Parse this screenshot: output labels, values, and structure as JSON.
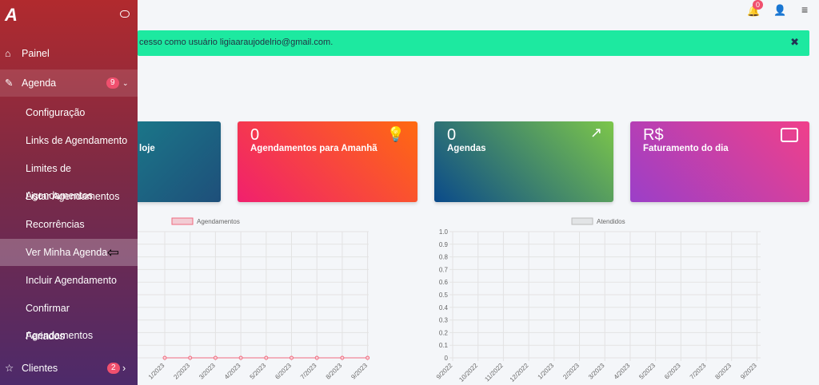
{
  "sidebar": {
    "logo": "A",
    "menu": [
      {
        "label": "Painel"
      },
      {
        "label": "Agenda",
        "badge": "9",
        "children": [
          "Configuração",
          "Links de Agendamento",
          "Limites de Agendamentos",
          "Listar Agendamentos",
          "Recorrências",
          "Ver Minha Agenda",
          "Incluir Agendamento",
          "Confirmar Agendamentos",
          "Feriados"
        ]
      },
      {
        "label": "Clientes",
        "badge": "2"
      }
    ]
  },
  "topbar": {
    "notifications": "0"
  },
  "alert": {
    "text": "cesso como usuário ligiaaraujodelrio@gmail.com.",
    "close": "✖"
  },
  "cards": [
    {
      "label": "loje"
    },
    {
      "value": "0",
      "label": "Agendamentos para Amanhã"
    },
    {
      "value": "0",
      "label": "Agendas"
    },
    {
      "value": "R$",
      "label": "Faturamento do dia"
    }
  ],
  "charts": [
    {
      "type": "line",
      "categories": [
        "1/2023",
        "2/2023",
        "3/2023",
        "4/2023",
        "5/2023",
        "6/2023",
        "7/2023",
        "8/2023",
        "9/2023"
      ],
      "series": [
        {
          "name": "Agendamentos",
          "color": "#f06a7e",
          "values": [
            0,
            0,
            0,
            0,
            0,
            0,
            0,
            0,
            0
          ]
        }
      ],
      "ylim": [
        0,
        1
      ]
    },
    {
      "type": "line",
      "categories": [
        "9/2022",
        "10/2022",
        "11/2022",
        "12/2022",
        "1/2023",
        "2/2023",
        "3/2023",
        "4/2023",
        "5/2023",
        "6/2023",
        "7/2023",
        "8/2023",
        "9/2023"
      ],
      "series": [
        {
          "name": "Atendidos",
          "color": "#bbbbbb"
        }
      ],
      "ylim": [
        0,
        1
      ],
      "yticks": [
        0,
        0.1,
        0.2,
        0.3,
        0.4,
        0.5,
        0.6,
        0.7,
        0.8,
        0.9,
        {
          "value": 1,
          "label": "1.0"
        }
      ]
    }
  ]
}
